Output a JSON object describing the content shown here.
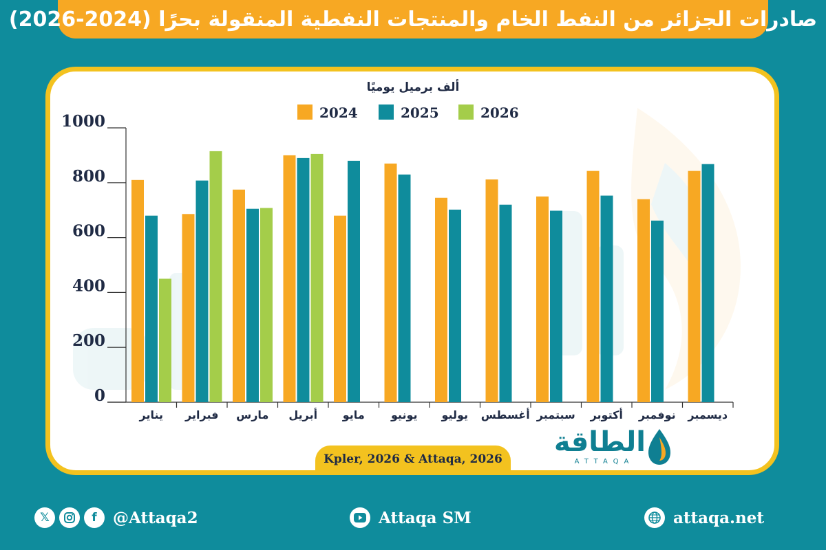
{
  "header": {
    "title": "صادرات الجزائر من النفط الخام والمنتجات النفطية المنقولة بحرًا (2024-2026)"
  },
  "chart_data": {
    "type": "bar",
    "unit_label": "ألف برميل يوميًا",
    "categories": [
      "يناير",
      "فبراير",
      "مارس",
      "أبريل",
      "مايو",
      "يونيو",
      "يوليو",
      "أغسطس",
      "سبتمبر",
      "أكتوبر",
      "نوفمبر",
      "ديسمبر"
    ],
    "series": [
      {
        "name": "2024",
        "color": "#f7a823",
        "values": [
          810,
          686,
          775,
          900,
          680,
          870,
          745,
          812,
          750,
          843,
          740,
          843
        ]
      },
      {
        "name": "2025",
        "color": "#0f8c9c",
        "values": [
          680,
          808,
          705,
          890,
          880,
          830,
          702,
          720,
          698,
          753,
          662,
          868
        ]
      },
      {
        "name": "2026",
        "color": "#a4cd4a",
        "values": [
          450,
          915,
          708,
          905,
          null,
          null,
          null,
          null,
          null,
          null,
          null,
          null
        ]
      }
    ],
    "yticks": [
      0,
      200,
      400,
      600,
      800,
      1000
    ],
    "ylim": [
      0,
      1000
    ],
    "grid": false,
    "legend_position": "top"
  },
  "source": "Kpler, 2026 & Attaqa, 2026",
  "logo": {
    "arabic": "الطاقة",
    "latin": "ATTAQA"
  },
  "footer": {
    "social_handle": "@Attaqa2",
    "youtube": "Attaqa SM",
    "website": "attaqa.net"
  },
  "icons": [
    "x-icon",
    "instagram-icon",
    "facebook-icon",
    "youtube-icon",
    "globe-icon"
  ]
}
